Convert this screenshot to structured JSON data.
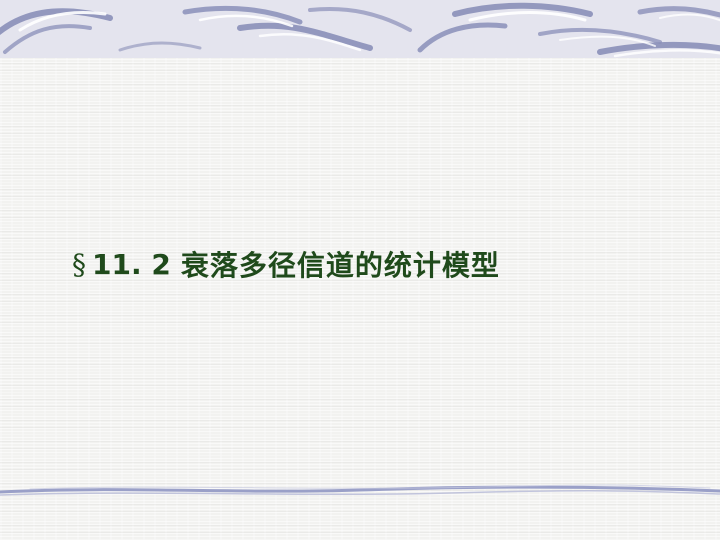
{
  "slide": {
    "section_mark": "§",
    "section_number": "11. 2",
    "section_title": "衰落多径信道的统计模型"
  },
  "colors": {
    "title_text": "#1f4a1b",
    "band_background": "#e4e4ee",
    "swirl_dark": "#8a8fb8",
    "swirl_light": "#ffffff",
    "rule_color": "#9aa0c8"
  }
}
